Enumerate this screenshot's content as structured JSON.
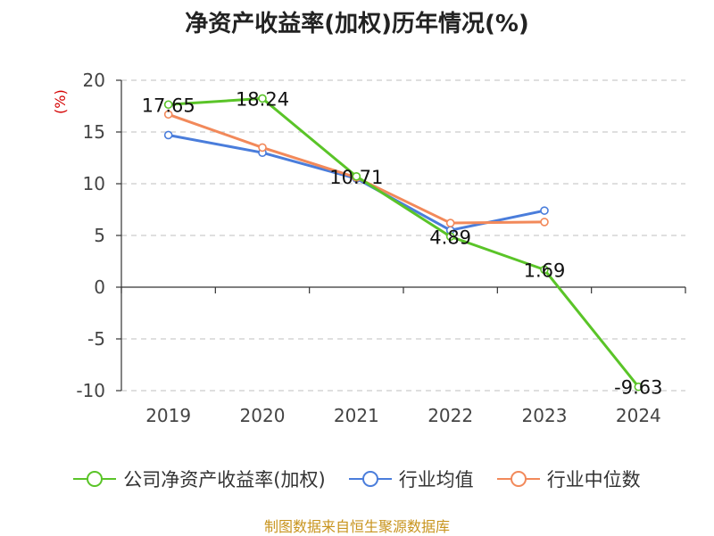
{
  "chart_data": {
    "type": "line",
    "title": "净资产收益率(加权)历年情况(%)",
    "ylabel": "(%)",
    "categories": [
      "2019",
      "2020",
      "2021",
      "2022",
      "2023",
      "2024"
    ],
    "ylim": [
      -10,
      20
    ],
    "yticks": [
      20,
      15,
      10,
      5,
      0,
      -5,
      -10
    ],
    "grid": "horizontal dashed",
    "legend_position": "bottom",
    "series": [
      {
        "name": "公司净资产收益率(加权)",
        "color": "#5ac428",
        "values": [
          17.65,
          18.24,
          10.71,
          4.89,
          1.69,
          -9.63
        ],
        "labels": [
          "17.65",
          "18.24",
          "10.71",
          "4.89",
          "1.69",
          "-9.63"
        ]
      },
      {
        "name": "行业均值",
        "color": "#4a7ddb",
        "values": [
          14.7,
          13.0,
          10.5,
          5.5,
          7.4,
          null
        ]
      },
      {
        "name": "行业中位数",
        "color": "#f2895a",
        "values": [
          16.7,
          13.5,
          10.6,
          6.2,
          6.3,
          null
        ]
      }
    ]
  },
  "footer": "制图数据来自恒生聚源数据库"
}
